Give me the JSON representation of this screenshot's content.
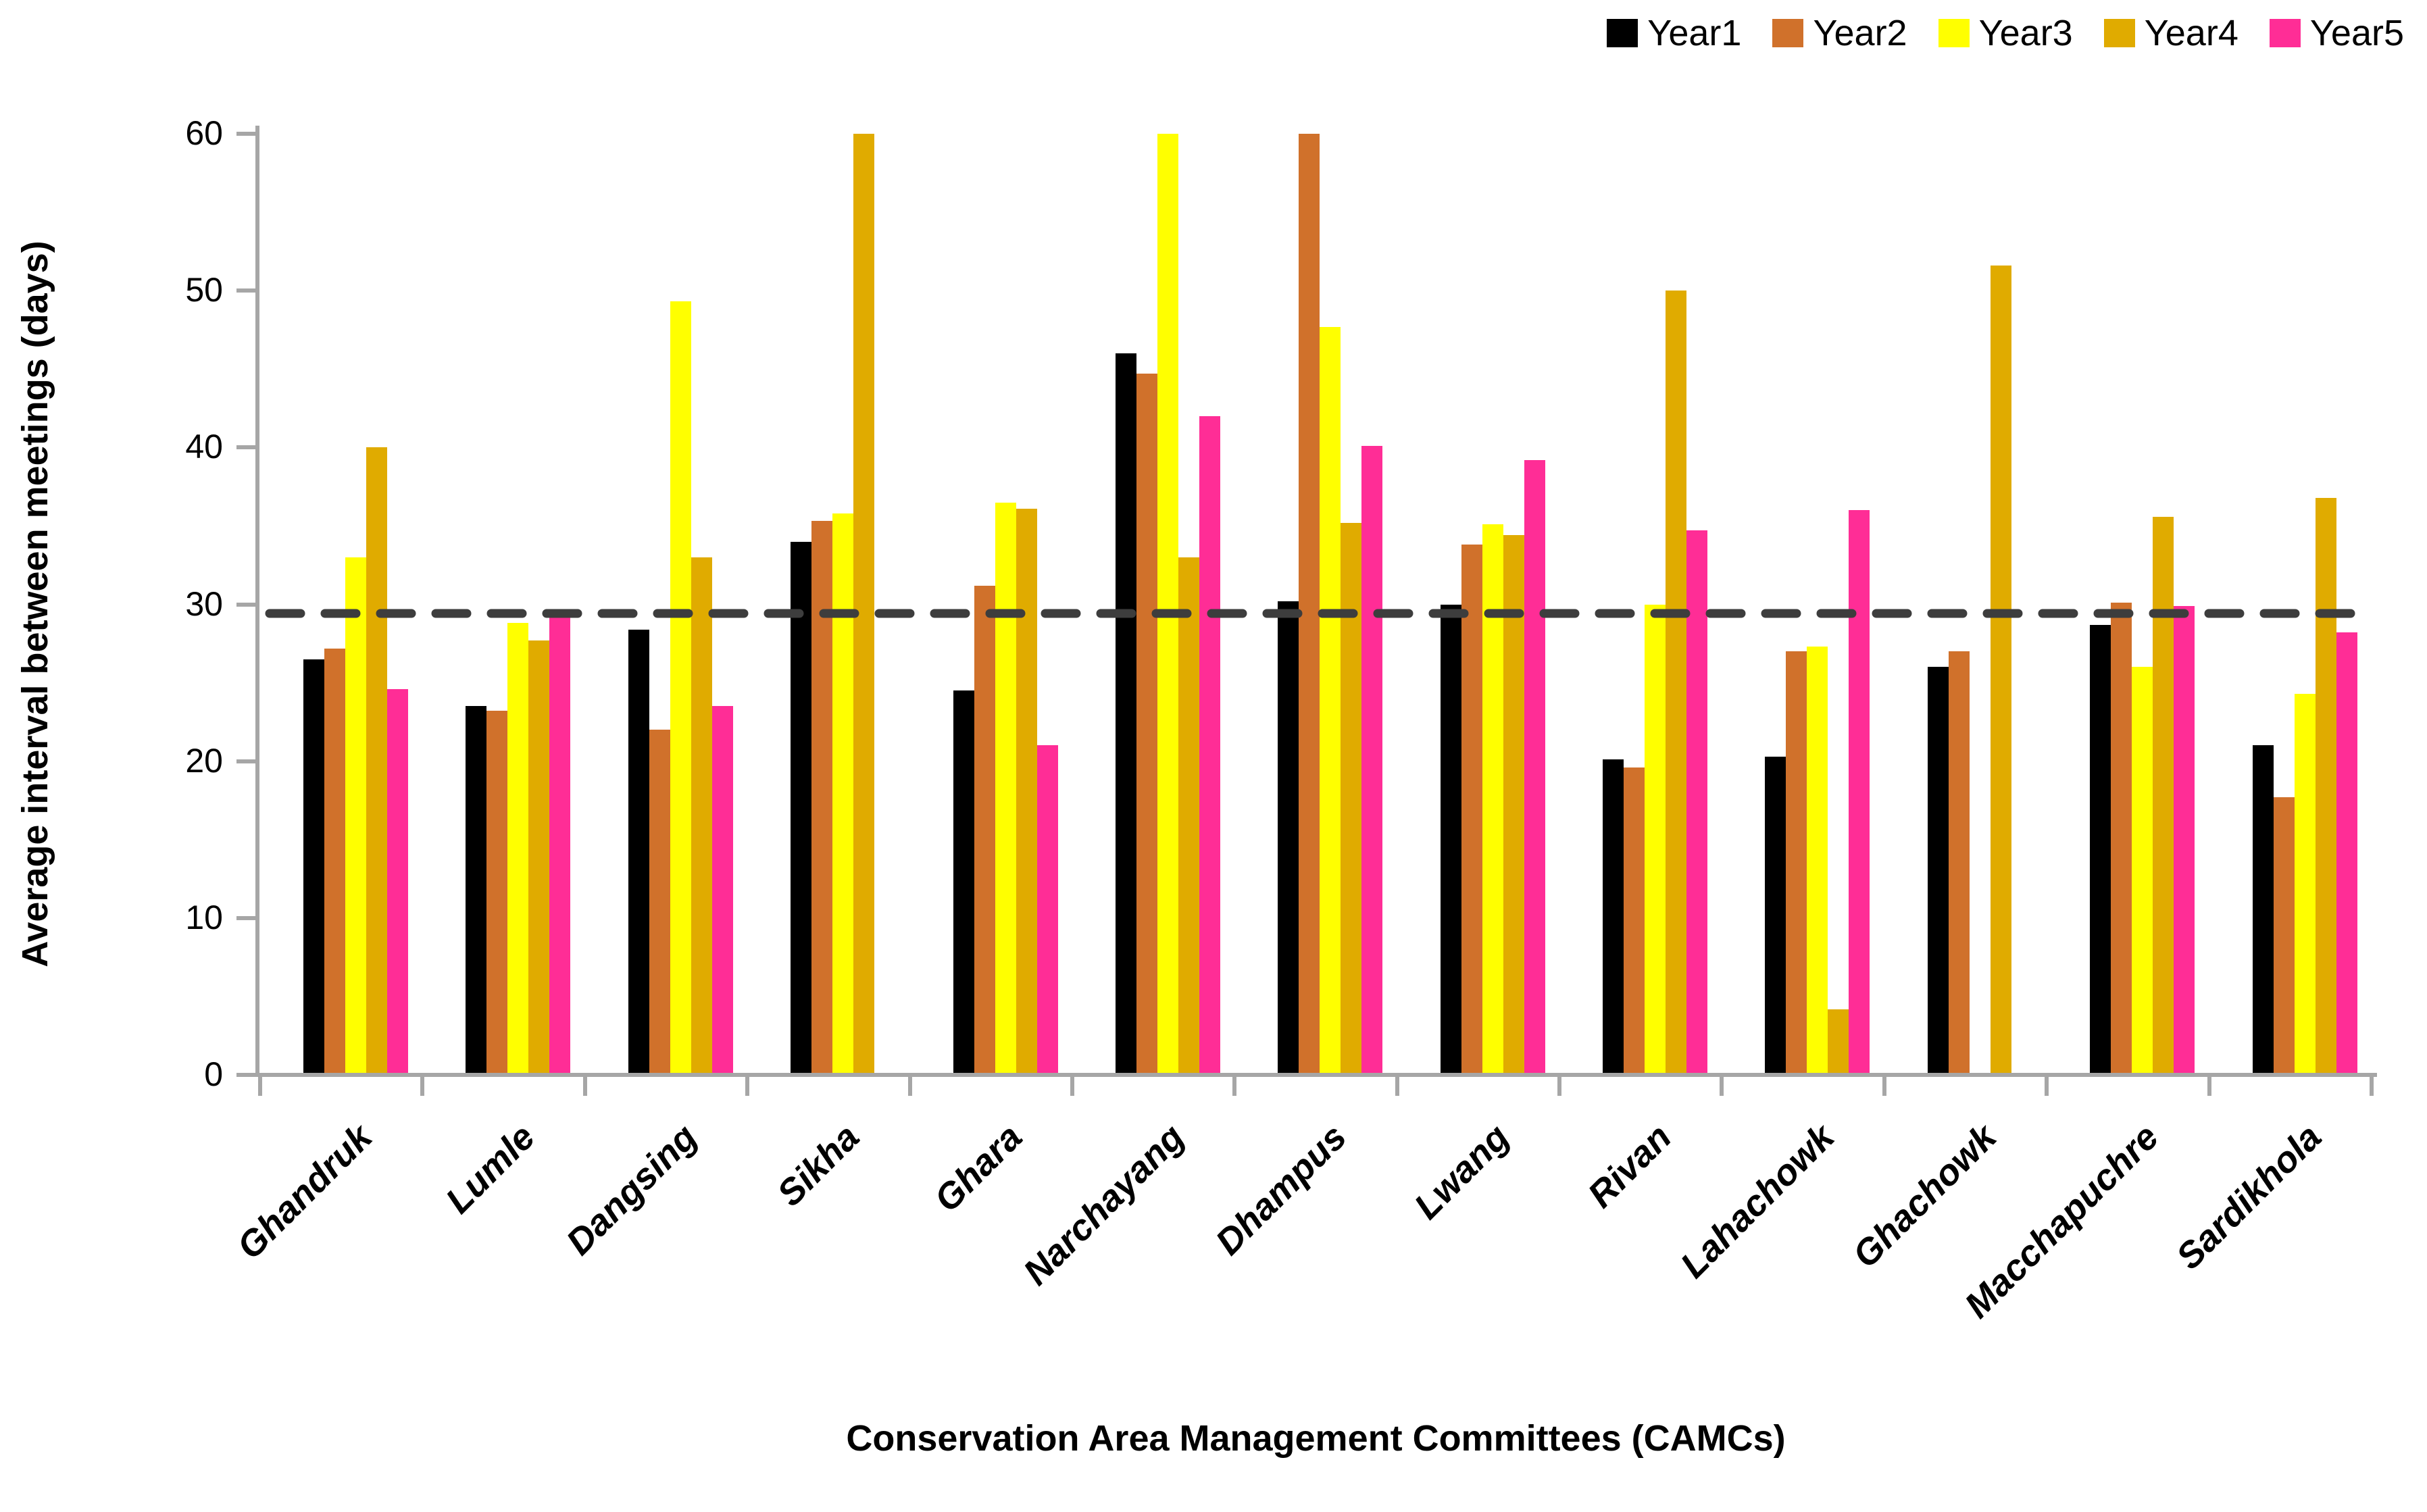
{
  "chart_data": {
    "type": "bar",
    "title": "",
    "xlabel": "Conservation Area Management Committees (CAMCs)",
    "ylabel": "Average interval between meetings (days)",
    "ylim": [
      0,
      60
    ],
    "yticks": [
      0,
      10,
      20,
      30,
      40,
      50,
      60
    ],
    "grid": false,
    "legend_position": "top-right",
    "reference_line": {
      "value": 29.4,
      "style": "dashed",
      "color": "#3d3d3d"
    },
    "axis_color": "#a6a6a6",
    "categories": [
      "Ghandruk",
      "Lumle",
      "Dangsing",
      "Sikha",
      "Ghara",
      "Narchayang",
      "Dhampus",
      "Lwang",
      "Rivan",
      "Lahachowk",
      "Ghachowk",
      "Macchapuchre",
      "Sardikhola"
    ],
    "series": [
      {
        "name": "Year1",
        "color": "#000000",
        "values": [
          26.5,
          23.5,
          28.4,
          34.0,
          24.5,
          46.0,
          30.2,
          30.0,
          20.1,
          20.3,
          26.0,
          28.7,
          21.0
        ]
      },
      {
        "name": "Year2",
        "color": "#d0712b",
        "values": [
          27.2,
          23.2,
          22.0,
          35.3,
          31.2,
          44.7,
          60.0,
          33.8,
          19.6,
          27.0,
          27.0,
          30.1,
          17.7
        ]
      },
      {
        "name": "Year3",
        "color": "#ffff00",
        "values": [
          33.0,
          28.8,
          49.3,
          35.8,
          36.5,
          60.0,
          47.7,
          35.1,
          30.0,
          27.3,
          null,
          26.0,
          24.3
        ]
      },
      {
        "name": "Year4",
        "color": "#e0ab00",
        "values": [
          40.0,
          27.7,
          33.0,
          60.0,
          36.1,
          33.0,
          35.2,
          34.4,
          50.0,
          4.2,
          51.6,
          35.6,
          36.8
        ]
      },
      {
        "name": "Year5",
        "color": "#ff2d96",
        "values": [
          24.6,
          29.4,
          23.5,
          null,
          21.0,
          42.0,
          40.1,
          39.2,
          34.7,
          36.0,
          null,
          29.9,
          28.2
        ]
      }
    ]
  }
}
